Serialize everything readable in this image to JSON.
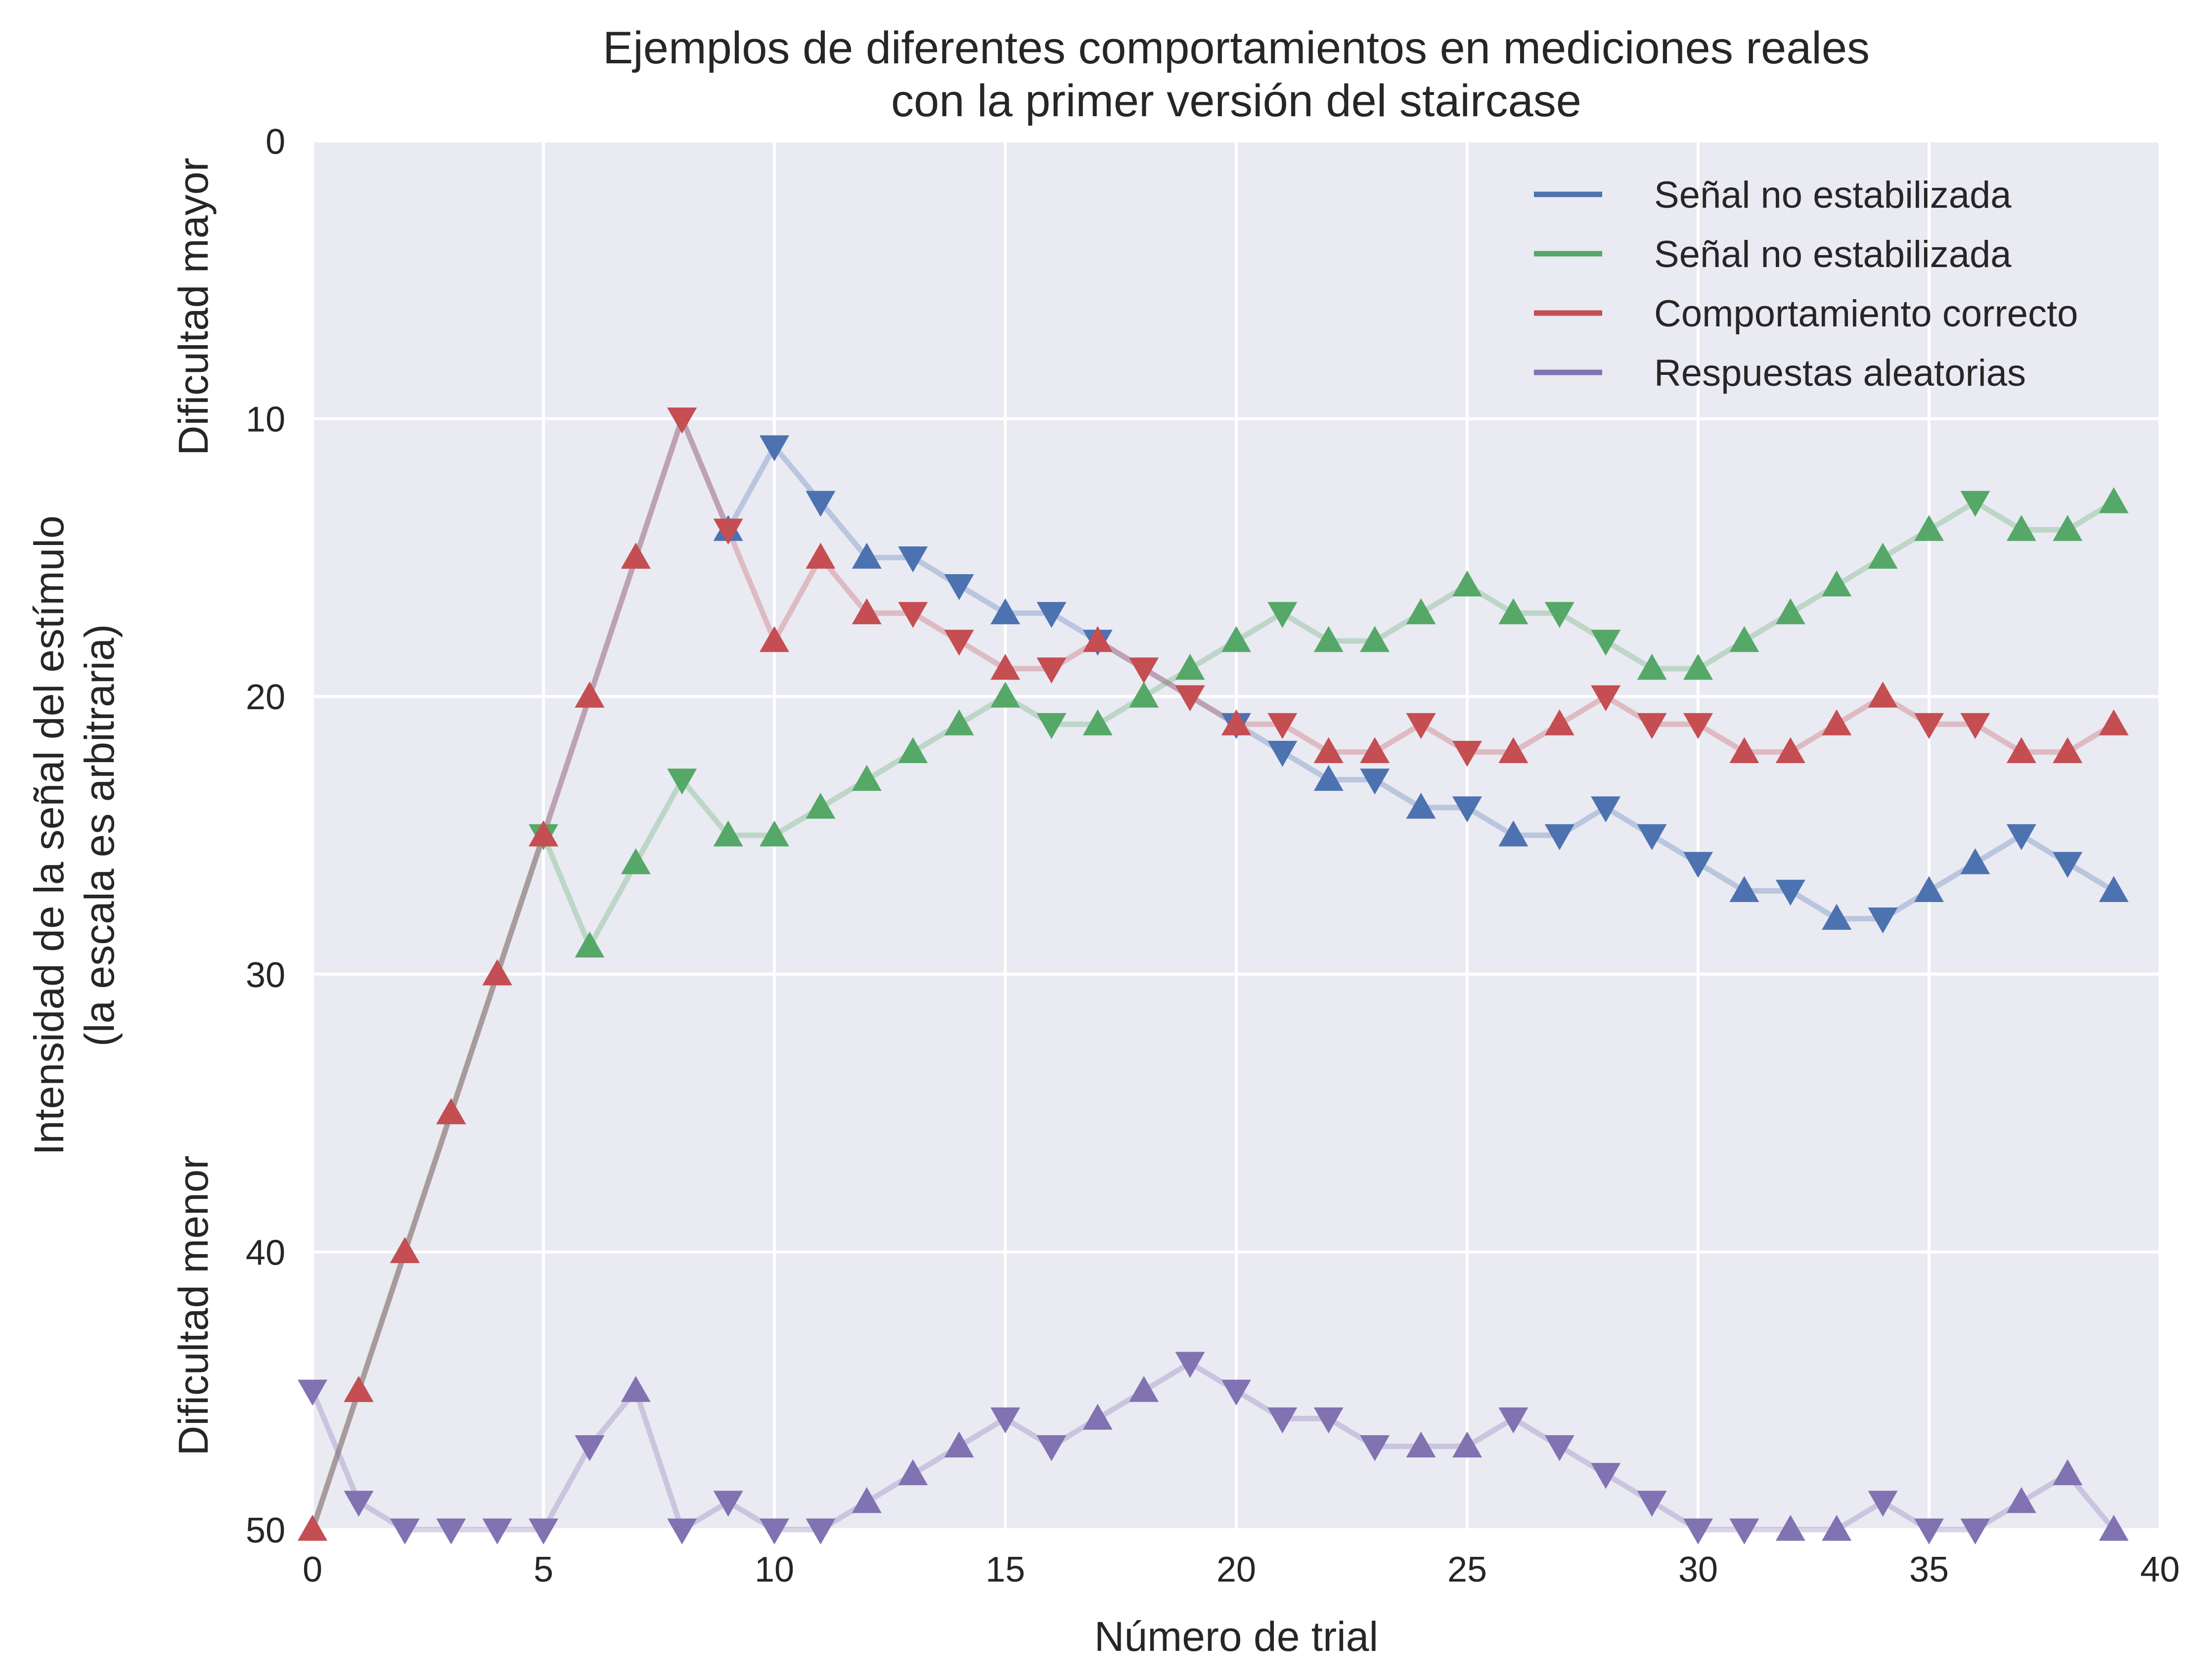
{
  "chart_data": {
    "type": "line",
    "title_lines": [
      "Ejemplos de diferentes comportamientos en mediciones reales",
      "con la primer versión del staircase"
    ],
    "xlabel": "Número de trial",
    "ylabel_lines": [
      "Intensidad de la señal del estímulo",
      "(la escala es arbitraria)"
    ],
    "difficulty_labels": {
      "top": "Dificultad mayor",
      "bottom": "Dificultad menor"
    },
    "xlim": [
      0,
      40
    ],
    "ylim": [
      0,
      50
    ],
    "y_inverted": true,
    "xticks": [
      0,
      5,
      10,
      15,
      20,
      25,
      30,
      35,
      40
    ],
    "yticks": [
      0,
      10,
      20,
      30,
      40,
      50
    ],
    "grid": true,
    "legend_position": "top-right",
    "x": [
      0,
      1,
      2,
      3,
      4,
      5,
      6,
      7,
      8,
      9,
      10,
      11,
      12,
      13,
      14,
      15,
      16,
      17,
      18,
      19,
      20,
      21,
      22,
      23,
      24,
      25,
      26,
      27,
      28,
      29,
      30,
      31,
      32,
      33,
      34,
      35,
      36,
      37,
      38,
      39
    ],
    "series": [
      {
        "name": "Señal no estabilizada",
        "color": "#4c72b0",
        "values": [
          50,
          45,
          40,
          35,
          30,
          25,
          20,
          15,
          10,
          14,
          11,
          13,
          15,
          15,
          16,
          17,
          17,
          18,
          19,
          20,
          21,
          22,
          23,
          23,
          24,
          24,
          25,
          25,
          24,
          25,
          26,
          27,
          27,
          28,
          28,
          27,
          26,
          25,
          26,
          27
        ],
        "markers": [
          "up",
          "up",
          "up",
          "up",
          "up",
          "up",
          "up",
          "up",
          "down",
          "up",
          "down",
          "down",
          "up",
          "down",
          "down",
          "up",
          "down",
          "down",
          "down",
          "down",
          "down",
          "down",
          "up",
          "down",
          "up",
          "down",
          "up",
          "down",
          "down",
          "down",
          "down",
          "up",
          "down",
          "up",
          "down",
          "up",
          "up",
          "down",
          "down",
          "up"
        ]
      },
      {
        "name": "Señal no estabilizada",
        "color": "#55a868",
        "values": [
          50,
          45,
          40,
          35,
          30,
          25,
          29,
          26,
          23,
          25,
          25,
          24,
          23,
          22,
          21,
          20,
          21,
          21,
          20,
          19,
          18,
          17,
          18,
          18,
          17,
          16,
          17,
          17,
          18,
          19,
          19,
          18,
          17,
          16,
          15,
          14,
          13,
          14,
          14,
          13
        ],
        "markers": [
          "up",
          "up",
          "up",
          "up",
          "up",
          "down",
          "up",
          "up",
          "down",
          "up",
          "up",
          "up",
          "up",
          "up",
          "up",
          "up",
          "down",
          "up",
          "up",
          "up",
          "up",
          "down",
          "up",
          "up",
          "up",
          "up",
          "up",
          "down",
          "down",
          "up",
          "up",
          "up",
          "up",
          "up",
          "up",
          "up",
          "down",
          "up",
          "up",
          "up"
        ]
      },
      {
        "name": "Comportamiento correcto",
        "color": "#c44e52",
        "values": [
          50,
          45,
          40,
          35,
          30,
          25,
          20,
          15,
          10,
          14,
          18,
          15,
          17,
          17,
          18,
          19,
          19,
          18,
          19,
          20,
          21,
          21,
          22,
          22,
          21,
          22,
          22,
          21,
          20,
          21,
          21,
          22,
          22,
          21,
          20,
          21,
          21,
          22,
          22,
          21
        ],
        "markers": [
          "up",
          "up",
          "up",
          "up",
          "up",
          "up",
          "up",
          "up",
          "down",
          "down",
          "up",
          "up",
          "up",
          "down",
          "down",
          "up",
          "down",
          "up",
          "down",
          "down",
          "up",
          "down",
          "up",
          "up",
          "down",
          "down",
          "up",
          "up",
          "down",
          "down",
          "down",
          "up",
          "up",
          "up",
          "up",
          "down",
          "down",
          "up",
          "up",
          "up"
        ]
      },
      {
        "name": "Respuestas aleatorias",
        "color": "#8172b2",
        "values": [
          45,
          49,
          50,
          50,
          50,
          50,
          47,
          45,
          50,
          49,
          50,
          50,
          49,
          48,
          47,
          46,
          47,
          46,
          45,
          44,
          45,
          46,
          46,
          47,
          47,
          47,
          46,
          47,
          48,
          49,
          50,
          50,
          50,
          50,
          49,
          50,
          50,
          49,
          48,
          50
        ],
        "markers": [
          "down",
          "down",
          "down",
          "down",
          "down",
          "down",
          "down",
          "up",
          "down",
          "down",
          "down",
          "down",
          "up",
          "up",
          "up",
          "down",
          "down",
          "up",
          "up",
          "down",
          "down",
          "down",
          "down",
          "down",
          "up",
          "up",
          "down",
          "down",
          "down",
          "down",
          "down",
          "down",
          "up",
          "up",
          "down",
          "down",
          "down",
          "up",
          "up",
          "up"
        ]
      }
    ]
  }
}
